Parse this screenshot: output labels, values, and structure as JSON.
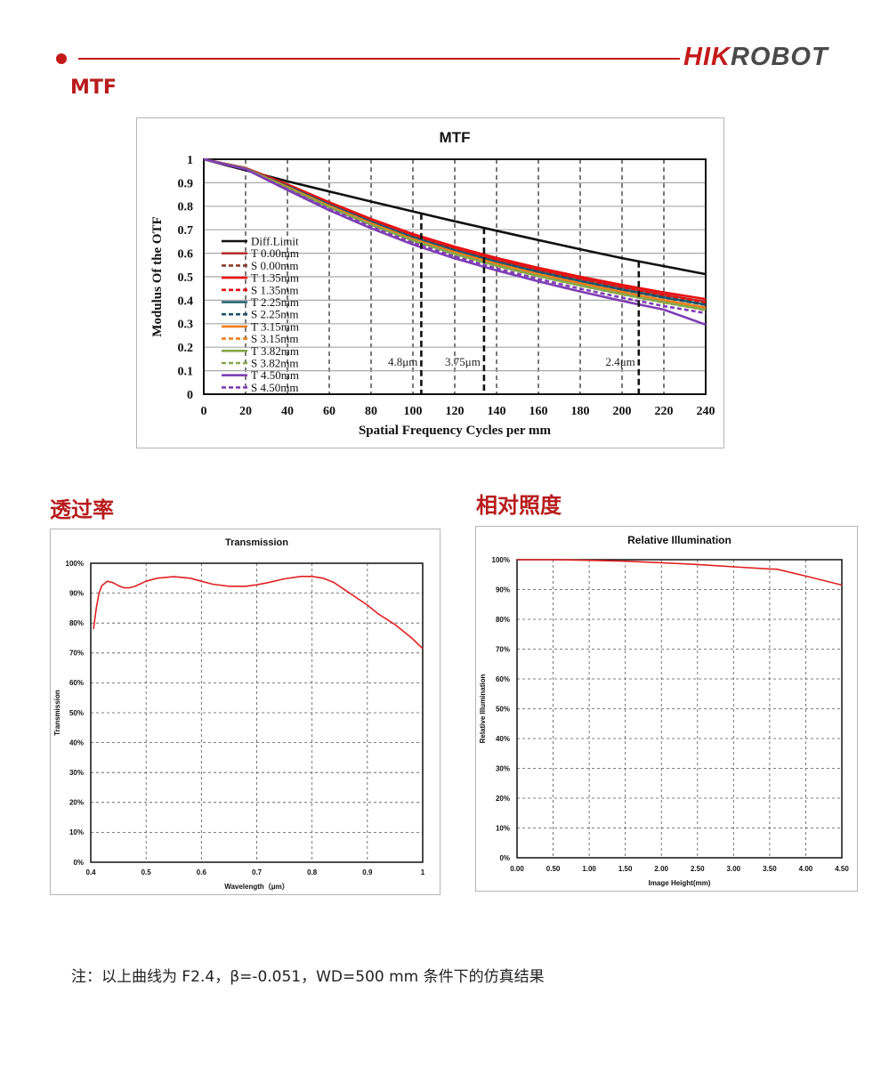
{
  "header": {
    "logo_hik": "HIK",
    "logo_robot": "ROBOT"
  },
  "sections": {
    "mtf": "MTF",
    "transmission": "透过率",
    "illumination": "相对照度"
  },
  "note": "注：以上曲线为 F2.4，β=-0.051，WD=500 mm 条件下的仿真结果",
  "colors": {
    "accent": "#c41a1a",
    "curve_red": "#e02020"
  },
  "chart_data": [
    {
      "type": "line",
      "title": "MTF",
      "xlabel": "Spatial Frequency Cycles per mm",
      "ylabel": "Modulus Of the OTF",
      "xlim": [
        0,
        240
      ],
      "ylim": [
        0,
        1
      ],
      "xticks": [
        0,
        20,
        40,
        60,
        80,
        100,
        120,
        140,
        160,
        180,
        200,
        220,
        240
      ],
      "xtick_labels": [
        "0",
        "20",
        "40",
        "60",
        "80",
        "100",
        "120",
        "140",
        "160",
        "180",
        "200",
        "220",
        "240"
      ],
      "yticks": [
        0,
        0.1,
        0.2,
        0.3,
        0.4,
        0.5,
        0.6,
        0.7,
        0.8,
        0.9,
        1
      ],
      "ytick_labels": [
        "0",
        "0.1",
        "0.2",
        "0.3",
        "0.4",
        "0.5",
        "0.6",
        "0.7",
        "0.8",
        "0.9",
        "1"
      ],
      "grid": "dashed",
      "legend_position": "bottom-left",
      "x": [
        0,
        20,
        40,
        60,
        80,
        100,
        120,
        140,
        160,
        180,
        200,
        220,
        240
      ],
      "series": [
        {
          "name": "Diff.Limit",
          "color": "#111111",
          "dash": false,
          "values": [
            1.0,
            0.953,
            0.906,
            0.863,
            0.82,
            0.778,
            0.736,
            0.696,
            0.656,
            0.617,
            0.579,
            0.545,
            0.511
          ]
        },
        {
          "name": "T 0.00mm",
          "color": "#b83030",
          "dash": false,
          "values": [
            1.0,
            0.962,
            0.89,
            0.812,
            0.74,
            0.675,
            0.621,
            0.572,
            0.53,
            0.492,
            0.456,
            0.423,
            0.393
          ]
        },
        {
          "name": "S 0.00mm",
          "color": "#8b3a2a",
          "dash": true,
          "values": [
            1.0,
            0.962,
            0.888,
            0.81,
            0.738,
            0.672,
            0.618,
            0.569,
            0.527,
            0.489,
            0.453,
            0.42,
            0.389
          ]
        },
        {
          "name": "T 1.35mm",
          "color": "#e81010",
          "dash": false,
          "values": [
            1.0,
            0.963,
            0.893,
            0.817,
            0.746,
            0.682,
            0.628,
            0.58,
            0.538,
            0.5,
            0.465,
            0.433,
            0.405
          ]
        },
        {
          "name": "S 1.35mm",
          "color": "#e81010",
          "dash": true,
          "values": [
            1.0,
            0.962,
            0.889,
            0.811,
            0.739,
            0.674,
            0.62,
            0.571,
            0.529,
            0.491,
            0.455,
            0.422,
            0.392
          ]
        },
        {
          "name": "T 2.25mm",
          "color": "#1f5f6b",
          "dash": false,
          "values": [
            1.0,
            0.961,
            0.886,
            0.807,
            0.734,
            0.668,
            0.613,
            0.564,
            0.521,
            0.482,
            0.446,
            0.412,
            0.381
          ]
        },
        {
          "name": "S 2.25mm",
          "color": "#1f4f6b",
          "dash": true,
          "values": [
            1.0,
            0.961,
            0.885,
            0.806,
            0.733,
            0.667,
            0.612,
            0.563,
            0.52,
            0.481,
            0.445,
            0.411,
            0.38
          ]
        },
        {
          "name": "T 3.15mm",
          "color": "#f07f1c",
          "dash": false,
          "values": [
            1.0,
            0.96,
            0.882,
            0.801,
            0.727,
            0.66,
            0.604,
            0.555,
            0.511,
            0.472,
            0.435,
            0.4,
            0.369
          ]
        },
        {
          "name": "S 3.15mm",
          "color": "#f07f1c",
          "dash": true,
          "values": [
            1.0,
            0.96,
            0.881,
            0.8,
            0.726,
            0.659,
            0.603,
            0.553,
            0.509,
            0.469,
            0.432,
            0.397,
            0.365
          ]
        },
        {
          "name": "T 3.82mm",
          "color": "#86a74a",
          "dash": false,
          "values": [
            1.0,
            0.959,
            0.878,
            0.796,
            0.721,
            0.654,
            0.597,
            0.547,
            0.503,
            0.463,
            0.426,
            0.391,
            0.359
          ]
        },
        {
          "name": "S 3.82mm",
          "color": "#86a74a",
          "dash": true,
          "values": [
            1.0,
            0.959,
            0.877,
            0.795,
            0.72,
            0.653,
            0.596,
            0.546,
            0.502,
            0.462,
            0.425,
            0.39,
            0.358
          ]
        },
        {
          "name": "T 4.50mm",
          "color": "#7f3fb5",
          "dash": false,
          "values": [
            1.0,
            0.958,
            0.869,
            0.783,
            0.706,
            0.637,
            0.578,
            0.527,
            0.48,
            0.437,
            0.397,
            0.36,
            0.296
          ]
        },
        {
          "name": "S 4.50mm",
          "color": "#7f3fb5",
          "dash": true,
          "values": [
            1.0,
            0.958,
            0.872,
            0.788,
            0.712,
            0.644,
            0.586,
            0.535,
            0.49,
            0.449,
            0.411,
            0.375,
            0.345
          ]
        }
      ],
      "markers": [
        {
          "x": 104,
          "label": "4.8μm"
        },
        {
          "x": 134,
          "label": "3.75μm"
        },
        {
          "x": 208,
          "label": "2.4μm"
        }
      ]
    },
    {
      "type": "line",
      "title": "Transmission",
      "xlabel": "Wavelength（μm）",
      "ylabel": "Transmission",
      "xlim": [
        0.4,
        1.0
      ],
      "ylim": [
        0,
        100
      ],
      "xticks": [
        0.4,
        0.5,
        0.6,
        0.7,
        0.8,
        0.9,
        1.0
      ],
      "xtick_labels": [
        "0.4",
        "0.5",
        "0.6",
        "0.7",
        "0.8",
        "0.9",
        "1"
      ],
      "yticks": [
        0,
        10,
        20,
        30,
        40,
        50,
        60,
        70,
        80,
        90,
        100
      ],
      "ytick_labels": [
        "0%",
        "10%",
        "20%",
        "30%",
        "40%",
        "50%",
        "60%",
        "70%",
        "80%",
        "90%",
        "100%"
      ],
      "grid": "dashed",
      "series": [
        {
          "color": "#e02020",
          "x": [
            0.405,
            0.41,
            0.415,
            0.42,
            0.43,
            0.44,
            0.45,
            0.46,
            0.47,
            0.48,
            0.5,
            0.52,
            0.55,
            0.58,
            0.6,
            0.62,
            0.65,
            0.68,
            0.7,
            0.72,
            0.75,
            0.78,
            0.8,
            0.82,
            0.84,
            0.86,
            0.88,
            0.9,
            0.92,
            0.95,
            0.98,
            1.0
          ],
          "values": [
            78,
            85,
            90,
            92.5,
            94.0,
            93.5,
            92.5,
            91.8,
            91.8,
            92.3,
            94.0,
            95.0,
            95.5,
            95.0,
            94.0,
            93.0,
            92.3,
            92.3,
            92.8,
            93.5,
            94.8,
            95.6,
            95.6,
            95.0,
            93.5,
            91.0,
            88.5,
            86.0,
            83.0,
            79.5,
            75.0,
            71.5
          ]
        }
      ]
    },
    {
      "type": "line",
      "title": "Relative Illumination",
      "xlabel": "Image Height(mm)",
      "ylabel": "Relative Illumination",
      "xlim": [
        0,
        4.5
      ],
      "ylim": [
        0,
        100
      ],
      "xticks": [
        0,
        0.5,
        1,
        1.5,
        2,
        2.5,
        3,
        3.5,
        4,
        4.5
      ],
      "xtick_labels": [
        "0.00",
        "0.50",
        "1.00",
        "1.50",
        "2.00",
        "2.50",
        "3.00",
        "3.50",
        "4.00",
        "4.50"
      ],
      "yticks": [
        0,
        10,
        20,
        30,
        40,
        50,
        60,
        70,
        80,
        90,
        100
      ],
      "ytick_labels": [
        "0%",
        "10%",
        "20%",
        "30%",
        "40%",
        "50%",
        "60%",
        "70%",
        "80%",
        "90%",
        "100%"
      ],
      "grid": "dashed",
      "series": [
        {
          "color": "#e02020",
          "x": [
            0,
            0.5,
            1.0,
            1.5,
            2.0,
            2.5,
            3.0,
            3.5,
            3.6,
            4.0,
            4.5
          ],
          "values": [
            100,
            100,
            99.8,
            99.5,
            99.0,
            98.4,
            97.6,
            96.9,
            96.8,
            94.5,
            91.5
          ]
        }
      ]
    }
  ]
}
